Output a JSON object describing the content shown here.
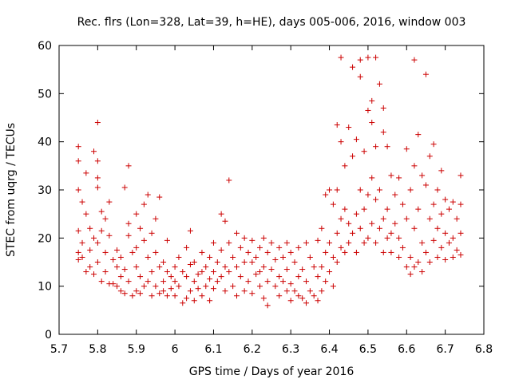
{
  "chart_data": {
    "type": "scatter",
    "title": "Rec. flrs (Lon=328, Lat=39, h=HE), days 005-006, 2016, window 003",
    "xlabel": "GPS time / Days of year 2016",
    "ylabel": "STEC from uqrg / TECUs",
    "xlim": [
      5.7,
      6.8
    ],
    "ylim": [
      0,
      60
    ],
    "xticks": [
      "5.7",
      "5.8",
      "5.9",
      "6",
      "6.1",
      "6.2",
      "6.3",
      "6.4",
      "6.5",
      "6.6",
      "6.7",
      "6.8"
    ],
    "yticks": [
      "0",
      "10",
      "20",
      "30",
      "40",
      "50",
      "60"
    ],
    "marker": "+",
    "color": "#cc0000",
    "grid": false,
    "points": [
      [
        5.75,
        39
      ],
      [
        5.75,
        36
      ],
      [
        5.75,
        30
      ],
      [
        5.75,
        21.5
      ],
      [
        5.75,
        17
      ],
      [
        5.75,
        15.5
      ],
      [
        5.76,
        27.5
      ],
      [
        5.76,
        19
      ],
      [
        5.76,
        16
      ],
      [
        5.77,
        33.5
      ],
      [
        5.77,
        25
      ],
      [
        5.77,
        13
      ],
      [
        5.78,
        22
      ],
      [
        5.78,
        17.5
      ],
      [
        5.78,
        14
      ],
      [
        5.79,
        38
      ],
      [
        5.79,
        20
      ],
      [
        5.79,
        12.5
      ],
      [
        5.8,
        44
      ],
      [
        5.8,
        36
      ],
      [
        5.8,
        32.5
      ],
      [
        5.8,
        30.5
      ],
      [
        5.8,
        19
      ],
      [
        5.8,
        15
      ],
      [
        5.81,
        25.5
      ],
      [
        5.81,
        21.5
      ],
      [
        5.81,
        11
      ],
      [
        5.82,
        24
      ],
      [
        5.82,
        17
      ],
      [
        5.82,
        13
      ],
      [
        5.83,
        27.5
      ],
      [
        5.83,
        20.5
      ],
      [
        5.83,
        10.5
      ],
      [
        5.84,
        15.5
      ],
      [
        5.84,
        10.5
      ],
      [
        5.85,
        17.5
      ],
      [
        5.85,
        14
      ],
      [
        5.85,
        10
      ],
      [
        5.86,
        16
      ],
      [
        5.86,
        12
      ],
      [
        5.86,
        9
      ],
      [
        5.87,
        30.5
      ],
      [
        5.87,
        13.5
      ],
      [
        5.87,
        8.5
      ],
      [
        5.88,
        35
      ],
      [
        5.88,
        23
      ],
      [
        5.88,
        20.5
      ],
      [
        5.88,
        11
      ],
      [
        5.89,
        17
      ],
      [
        5.89,
        8
      ],
      [
        5.9,
        25
      ],
      [
        5.9,
        18
      ],
      [
        5.9,
        14
      ],
      [
        5.9,
        9
      ],
      [
        5.91,
        22
      ],
      [
        5.91,
        12
      ],
      [
        5.91,
        8.5
      ],
      [
        5.92,
        27
      ],
      [
        5.92,
        19.5
      ],
      [
        5.92,
        10
      ],
      [
        5.93,
        29
      ],
      [
        5.93,
        16
      ],
      [
        5.93,
        11
      ],
      [
        5.94,
        21
      ],
      [
        5.94,
        13
      ],
      [
        5.94,
        8
      ],
      [
        5.95,
        24
      ],
      [
        5.95,
        17
      ],
      [
        5.95,
        10
      ],
      [
        5.96,
        28.5
      ],
      [
        5.96,
        14
      ],
      [
        5.96,
        8.5
      ],
      [
        5.97,
        15
      ],
      [
        5.97,
        11
      ],
      [
        5.97,
        9
      ],
      [
        5.98,
        19.5
      ],
      [
        5.98,
        13
      ],
      [
        5.98,
        8
      ],
      [
        5.99,
        12
      ],
      [
        5.99,
        9.5
      ],
      [
        6,
        14
      ],
      [
        6,
        11
      ],
      [
        6,
        8
      ],
      [
        6.01,
        16
      ],
      [
        6.01,
        10
      ],
      [
        6.02,
        13
      ],
      [
        6.02,
        6.5
      ],
      [
        6.03,
        18
      ],
      [
        6.03,
        12
      ],
      [
        6.03,
        7.5
      ],
      [
        6.04,
        21.5
      ],
      [
        6.04,
        14.5
      ],
      [
        6.04,
        9
      ],
      [
        6.05,
        15
      ],
      [
        6.05,
        11
      ],
      [
        6.05,
        7
      ],
      [
        6.06,
        12.5
      ],
      [
        6.06,
        9.5
      ],
      [
        6.07,
        17
      ],
      [
        6.07,
        13
      ],
      [
        6.07,
        8
      ],
      [
        6.08,
        14
      ],
      [
        6.08,
        10
      ],
      [
        6.09,
        16
      ],
      [
        6.09,
        11.5
      ],
      [
        6.09,
        7
      ],
      [
        6.1,
        19
      ],
      [
        6.1,
        13
      ],
      [
        6.1,
        9.5
      ],
      [
        6.11,
        15
      ],
      [
        6.11,
        11
      ],
      [
        6.12,
        25
      ],
      [
        6.12,
        17.5
      ],
      [
        6.12,
        12
      ],
      [
        6.13,
        23.5
      ],
      [
        6.13,
        14
      ],
      [
        6.13,
        9
      ],
      [
        6.14,
        32
      ],
      [
        6.14,
        19
      ],
      [
        6.14,
        13
      ],
      [
        6.15,
        16
      ],
      [
        6.15,
        10
      ],
      [
        6.16,
        21
      ],
      [
        6.16,
        14
      ],
      [
        6.16,
        8
      ],
      [
        6.17,
        18
      ],
      [
        6.17,
        12
      ],
      [
        6.18,
        20
      ],
      [
        6.18,
        15
      ],
      [
        6.18,
        9
      ],
      [
        6.19,
        17
      ],
      [
        6.19,
        11
      ],
      [
        6.2,
        19.5
      ],
      [
        6.2,
        15
      ],
      [
        6.2,
        8.5
      ],
      [
        6.21,
        16
      ],
      [
        6.21,
        12.5
      ],
      [
        6.22,
        18
      ],
      [
        6.22,
        13
      ],
      [
        6.22,
        10
      ],
      [
        6.23,
        20
      ],
      [
        6.23,
        14
      ],
      [
        6.23,
        7.5
      ],
      [
        6.24,
        17
      ],
      [
        6.24,
        11
      ],
      [
        6.24,
        6
      ],
      [
        6.25,
        19
      ],
      [
        6.25,
        13.5
      ],
      [
        6.26,
        15.5
      ],
      [
        6.26,
        10
      ],
      [
        6.27,
        18
      ],
      [
        6.27,
        12
      ],
      [
        6.27,
        8
      ],
      [
        6.28,
        16
      ],
      [
        6.28,
        11
      ],
      [
        6.29,
        19
      ],
      [
        6.29,
        13.5
      ],
      [
        6.29,
        9
      ],
      [
        6.3,
        17
      ],
      [
        6.3,
        10.5
      ],
      [
        6.3,
        7
      ],
      [
        6.31,
        15
      ],
      [
        6.31,
        9
      ],
      [
        6.32,
        18
      ],
      [
        6.32,
        12
      ],
      [
        6.32,
        8
      ],
      [
        6.33,
        13.5
      ],
      [
        6.33,
        7.5
      ],
      [
        6.34,
        19
      ],
      [
        6.34,
        11
      ],
      [
        6.34,
        6.5
      ],
      [
        6.35,
        16
      ],
      [
        6.35,
        9
      ],
      [
        6.36,
        14
      ],
      [
        6.36,
        8
      ],
      [
        6.37,
        19.5
      ],
      [
        6.37,
        12
      ],
      [
        6.37,
        7
      ],
      [
        6.38,
        22
      ],
      [
        6.38,
        14
      ],
      [
        6.38,
        9
      ],
      [
        6.39,
        29
      ],
      [
        6.39,
        17
      ],
      [
        6.39,
        11
      ],
      [
        6.4,
        30
      ],
      [
        6.4,
        19
      ],
      [
        6.4,
        13
      ],
      [
        6.41,
        27
      ],
      [
        6.41,
        16
      ],
      [
        6.41,
        10
      ],
      [
        6.42,
        43.5
      ],
      [
        6.42,
        30
      ],
      [
        6.42,
        21
      ],
      [
        6.42,
        15
      ],
      [
        6.43,
        57.5
      ],
      [
        6.43,
        40
      ],
      [
        6.43,
        24
      ],
      [
        6.43,
        18
      ],
      [
        6.44,
        35
      ],
      [
        6.44,
        26
      ],
      [
        6.44,
        17
      ],
      [
        6.45,
        43
      ],
      [
        6.45,
        23
      ],
      [
        6.45,
        19
      ],
      [
        6.46,
        55.5
      ],
      [
        6.46,
        37
      ],
      [
        6.46,
        21
      ],
      [
        6.47,
        40.5
      ],
      [
        6.47,
        25
      ],
      [
        6.47,
        17
      ],
      [
        6.48,
        57
      ],
      [
        6.48,
        53.5
      ],
      [
        6.48,
        30
      ],
      [
        6.48,
        22
      ],
      [
        6.49,
        38
      ],
      [
        6.49,
        26
      ],
      [
        6.49,
        19
      ],
      [
        6.5,
        57.5
      ],
      [
        6.5,
        46.5
      ],
      [
        6.5,
        29
      ],
      [
        6.5,
        20
      ],
      [
        6.51,
        48.5
      ],
      [
        6.51,
        44
      ],
      [
        6.51,
        32.5
      ],
      [
        6.51,
        23
      ],
      [
        6.52,
        57.5
      ],
      [
        6.52,
        39
      ],
      [
        6.52,
        28
      ],
      [
        6.52,
        19
      ],
      [
        6.53,
        52
      ],
      [
        6.53,
        30
      ],
      [
        6.53,
        22
      ],
      [
        6.54,
        47
      ],
      [
        6.54,
        42
      ],
      [
        6.54,
        24
      ],
      [
        6.54,
        17
      ],
      [
        6.55,
        39
      ],
      [
        6.55,
        26
      ],
      [
        6.55,
        20
      ],
      [
        6.56,
        33
      ],
      [
        6.56,
        21
      ],
      [
        6.56,
        17
      ],
      [
        6.57,
        29
      ],
      [
        6.57,
        23
      ],
      [
        6.58,
        32.5
      ],
      [
        6.58,
        20
      ],
      [
        6.58,
        16
      ],
      [
        6.59,
        27
      ],
      [
        6.59,
        18
      ],
      [
        6.6,
        38.5
      ],
      [
        6.6,
        24
      ],
      [
        6.6,
        14
      ],
      [
        6.61,
        30
      ],
      [
        6.61,
        16
      ],
      [
        6.61,
        12.5
      ],
      [
        6.62,
        57
      ],
      [
        6.62,
        35
      ],
      [
        6.62,
        22
      ],
      [
        6.62,
        14
      ],
      [
        6.63,
        41.5
      ],
      [
        6.63,
        26
      ],
      [
        6.63,
        15
      ],
      [
        6.64,
        33
      ],
      [
        6.64,
        19
      ],
      [
        6.64,
        13
      ],
      [
        6.65,
        54
      ],
      [
        6.65,
        31
      ],
      [
        6.65,
        17
      ],
      [
        6.66,
        37
      ],
      [
        6.66,
        24
      ],
      [
        6.66,
        15
      ],
      [
        6.67,
        39.5
      ],
      [
        6.67,
        27
      ],
      [
        6.67,
        19.5
      ],
      [
        6.68,
        30
      ],
      [
        6.68,
        22
      ],
      [
        6.68,
        16
      ],
      [
        6.69,
        34
      ],
      [
        6.69,
        25
      ],
      [
        6.69,
        18
      ],
      [
        6.7,
        28
      ],
      [
        6.7,
        21
      ],
      [
        6.7,
        15.5
      ],
      [
        6.71,
        26
      ],
      [
        6.71,
        19
      ],
      [
        6.72,
        27.5
      ],
      [
        6.72,
        20
      ],
      [
        6.72,
        16
      ],
      [
        6.73,
        24
      ],
      [
        6.73,
        17.5
      ],
      [
        6.74,
        33
      ],
      [
        6.74,
        27
      ],
      [
        6.74,
        21
      ],
      [
        6.74,
        16.5
      ]
    ]
  }
}
